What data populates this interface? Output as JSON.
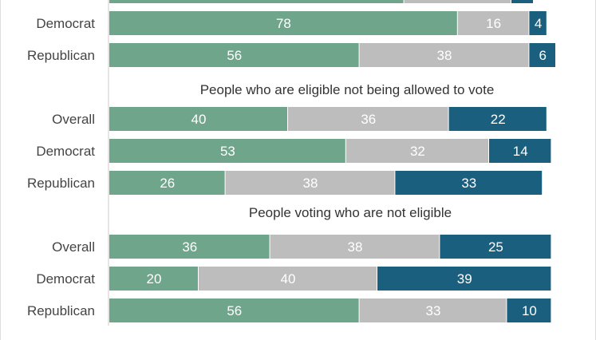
{
  "chart_data": {
    "type": "bar",
    "orientation": "horizontal",
    "stacked": true,
    "colors": {
      "first": "#6fa58a",
      "second": "#bdbdbd",
      "third": "#1a5f7e",
      "axis": "#cccccc",
      "frame": "#dddddd"
    },
    "groups": [
      {
        "title": "",
        "rows": [
          {
            "label": "",
            "values": [
              66,
              24,
              5
            ],
            "partial": true
          },
          {
            "label": "Democrat",
            "values": [
              78,
              16,
              4
            ]
          },
          {
            "label": "Republican",
            "values": [
              56,
              38,
              6
            ]
          }
        ]
      },
      {
        "title": "People who are eligible not being allowed to vote",
        "rows": [
          {
            "label": "Overall",
            "values": [
              40,
              36,
              22
            ]
          },
          {
            "label": "Democrat",
            "values": [
              53,
              32,
              14
            ]
          },
          {
            "label": "Republican",
            "values": [
              26,
              38,
              33
            ]
          }
        ]
      },
      {
        "title": "People voting who are not eligible",
        "rows": [
          {
            "label": "Overall",
            "values": [
              36,
              38,
              25
            ]
          },
          {
            "label": "Democrat",
            "values": [
              20,
              40,
              39
            ]
          },
          {
            "label": "Republican",
            "values": [
              56,
              33,
              10
            ]
          }
        ]
      }
    ]
  }
}
